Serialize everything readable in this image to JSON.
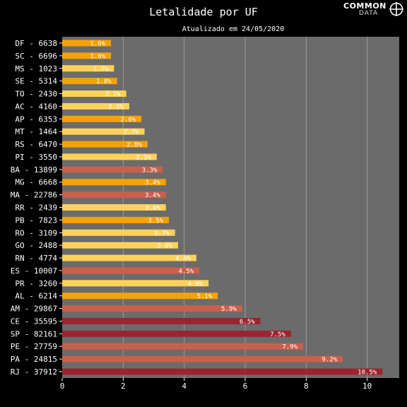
{
  "header": {
    "title": "Letalidade por UF",
    "subtitle": "Atualizado em 24/05/2020",
    "logo_text": "COMMON",
    "logo_sub": "DATA"
  },
  "chart_data": {
    "type": "bar",
    "orientation": "horizontal",
    "title": "Letalidade por UF",
    "subtitle": "Atualizado em 24/05/2020",
    "xlabel": "",
    "ylabel": "",
    "xlim": [
      0,
      11.05
    ],
    "xticks": [
      0,
      2,
      4,
      6,
      8,
      10
    ],
    "grid": true,
    "categories": [
      "DF - 6638",
      "SC - 6696",
      "MS - 1023",
      "SE - 5314",
      "TO - 2430",
      "AC - 4160",
      "AP - 6353",
      "MT - 1464",
      "RS - 6470",
      "PI - 3550",
      "BA - 13899",
      "MG - 6668",
      "MA - 22786",
      "RR - 2439",
      "PB - 7823",
      "RO - 3109",
      "GO - 2488",
      "RN - 4774",
      "ES - 10007",
      "PR - 3260",
      "AL - 6214",
      "AM - 29867",
      "CE - 35595",
      "SP - 82161",
      "PE - 27759",
      "PA - 24815",
      "RJ - 37912"
    ],
    "values": [
      1.6,
      1.6,
      1.7,
      1.8,
      2.1,
      2.2,
      2.6,
      2.7,
      2.8,
      3.1,
      3.3,
      3.4,
      3.4,
      3.4,
      3.5,
      3.7,
      3.8,
      4.4,
      4.5,
      4.8,
      5.1,
      5.9,
      6.5,
      7.5,
      7.9,
      9.2,
      10.5
    ],
    "labels": [
      "1.6%",
      "1.6%",
      "1.7%",
      "1.8%",
      "2.1%",
      "2.2%",
      "2.6%",
      "2.7%",
      "2.8%",
      "3.1%",
      "3.3%",
      "3.4%",
      "3.4%",
      "3.4%",
      "3.5%",
      "3.7%",
      "3.8%",
      "4.4%",
      "4.5%",
      "4.8%",
      "5.1%",
      "5.9%",
      "6.5%",
      "7.5%",
      "7.9%",
      "9.2%",
      "10.5%"
    ],
    "bar_colors": [
      "#f5a207",
      "#f5a207",
      "#fcd25a",
      "#f5a207",
      "#fcd25a",
      "#fcd25a",
      "#f5a207",
      "#fcd25a",
      "#f5a207",
      "#fcd25a",
      "#c9604c",
      "#f5a207",
      "#c9604c",
      "#fcd25a",
      "#f5a207",
      "#fcd25a",
      "#fcd25a",
      "#fcd25a",
      "#c9604c",
      "#fcd25a",
      "#f5a207",
      "#c9604c",
      "#9b2430",
      "#9b2430",
      "#c9604c",
      "#c9604c",
      "#9b2430"
    ],
    "colors": {
      "plot_background": "#6b6b6b",
      "page_background": "#000000",
      "grid": "#9a9a9a",
      "text": "#ffffff"
    }
  }
}
